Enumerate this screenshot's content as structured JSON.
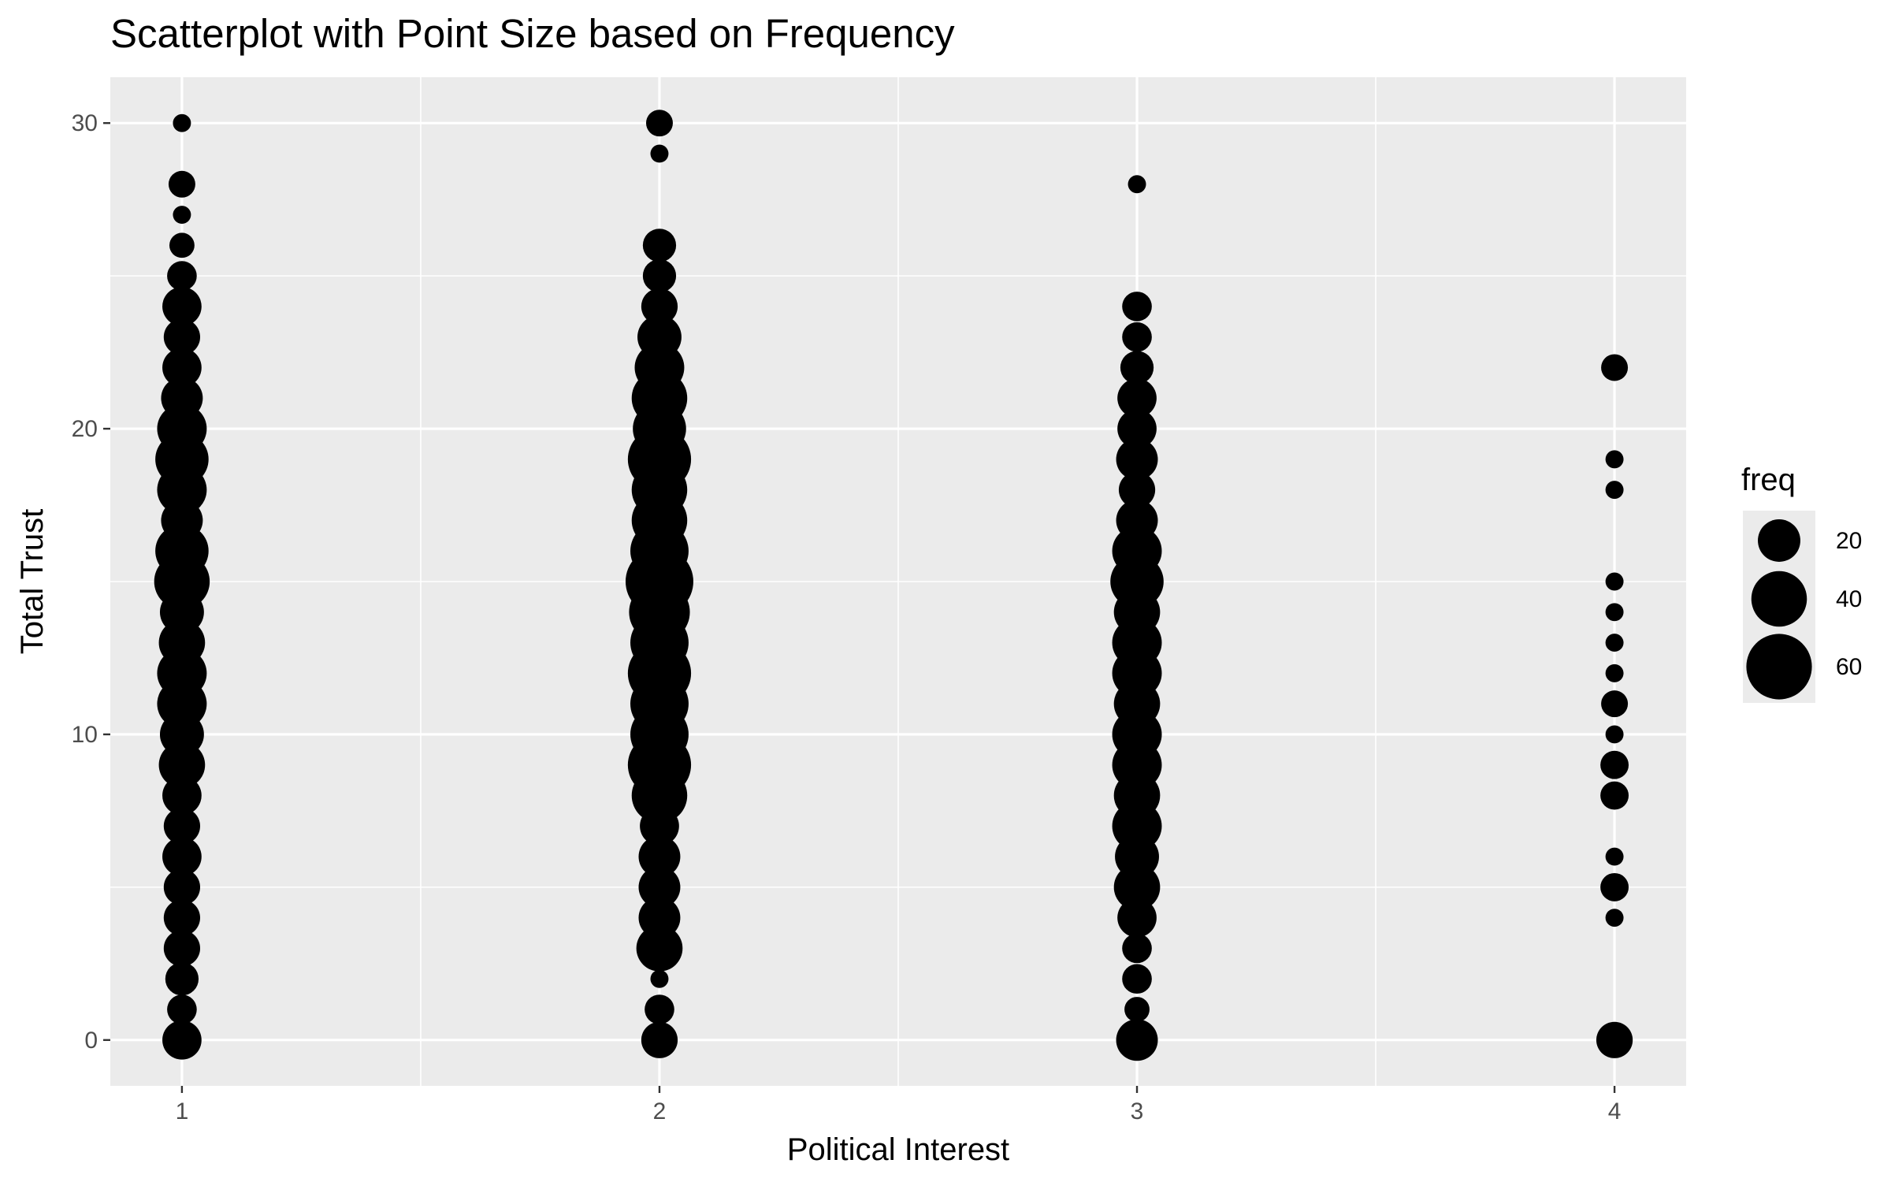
{
  "chart_data": {
    "type": "scatter",
    "title": "Scatterplot with Point Size based on Frequency",
    "xlabel": "Political Interest",
    "ylabel": "Total Trust",
    "xlim": [
      0.85,
      4.15
    ],
    "ylim": [
      -1.5,
      31.5
    ],
    "x_ticks": [
      1,
      2,
      3,
      4
    ],
    "y_ticks": [
      0,
      10,
      20,
      30
    ],
    "grid": true,
    "size_encoding": "freq",
    "legend": {
      "title": "freq",
      "position": "right",
      "entries": [
        {
          "label": "20",
          "value": 20
        },
        {
          "label": "40",
          "value": 40
        },
        {
          "label": "60",
          "value": 60
        }
      ]
    },
    "point_color": "#000000",
    "panel_background": "#ebebeb",
    "grid_color": "#ffffff",
    "series": [
      {
        "x": 1,
        "points": [
          {
            "y": 30,
            "freq": 1
          },
          {
            "y": 28,
            "freq": 5
          },
          {
            "y": 27,
            "freq": 1
          },
          {
            "y": 26,
            "freq": 4
          },
          {
            "y": 25,
            "freq": 7
          },
          {
            "y": 24,
            "freq": 16
          },
          {
            "y": 23,
            "freq": 13
          },
          {
            "y": 22,
            "freq": 16
          },
          {
            "y": 21,
            "freq": 19
          },
          {
            "y": 20,
            "freq": 30
          },
          {
            "y": 19,
            "freq": 36
          },
          {
            "y": 18,
            "freq": 30
          },
          {
            "y": 17,
            "freq": 19
          },
          {
            "y": 16,
            "freq": 36
          },
          {
            "y": 15,
            "freq": 40
          },
          {
            "y": 14,
            "freq": 22
          },
          {
            "y": 13,
            "freq": 25
          },
          {
            "y": 12,
            "freq": 30
          },
          {
            "y": 11,
            "freq": 30
          },
          {
            "y": 10,
            "freq": 22
          },
          {
            "y": 9,
            "freq": 25
          },
          {
            "y": 8,
            "freq": 16
          },
          {
            "y": 7,
            "freq": 13
          },
          {
            "y": 6,
            "freq": 16
          },
          {
            "y": 5,
            "freq": 13
          },
          {
            "y": 4,
            "freq": 13
          },
          {
            "y": 3,
            "freq": 13
          },
          {
            "y": 2,
            "freq": 10
          },
          {
            "y": 1,
            "freq": 7
          },
          {
            "y": 0,
            "freq": 16
          }
        ]
      },
      {
        "x": 2,
        "points": [
          {
            "y": 30,
            "freq": 5
          },
          {
            "y": 29,
            "freq": 1
          },
          {
            "y": 26,
            "freq": 10
          },
          {
            "y": 25,
            "freq": 10
          },
          {
            "y": 24,
            "freq": 13
          },
          {
            "y": 23,
            "freq": 22
          },
          {
            "y": 22,
            "freq": 30
          },
          {
            "y": 21,
            "freq": 40
          },
          {
            "y": 20,
            "freq": 36
          },
          {
            "y": 19,
            "freq": 55
          },
          {
            "y": 18,
            "freq": 40
          },
          {
            "y": 17,
            "freq": 40
          },
          {
            "y": 16,
            "freq": 45
          },
          {
            "y": 15,
            "freq": 65
          },
          {
            "y": 14,
            "freq": 50
          },
          {
            "y": 13,
            "freq": 45
          },
          {
            "y": 12,
            "freq": 55
          },
          {
            "y": 11,
            "freq": 45
          },
          {
            "y": 10,
            "freq": 45
          },
          {
            "y": 9,
            "freq": 55
          },
          {
            "y": 8,
            "freq": 40
          },
          {
            "y": 7,
            "freq": 16
          },
          {
            "y": 6,
            "freq": 19
          },
          {
            "y": 5,
            "freq": 19
          },
          {
            "y": 4,
            "freq": 19
          },
          {
            "y": 3,
            "freq": 25
          },
          {
            "y": 2,
            "freq": 1
          },
          {
            "y": 1,
            "freq": 7
          },
          {
            "y": 0,
            "freq": 13
          }
        ]
      },
      {
        "x": 3,
        "points": [
          {
            "y": 28,
            "freq": 1
          },
          {
            "y": 24,
            "freq": 7
          },
          {
            "y": 23,
            "freq": 7
          },
          {
            "y": 22,
            "freq": 10
          },
          {
            "y": 21,
            "freq": 16
          },
          {
            "y": 20,
            "freq": 16
          },
          {
            "y": 19,
            "freq": 19
          },
          {
            "y": 18,
            "freq": 13
          },
          {
            "y": 17,
            "freq": 19
          },
          {
            "y": 16,
            "freq": 30
          },
          {
            "y": 15,
            "freq": 36
          },
          {
            "y": 14,
            "freq": 25
          },
          {
            "y": 13,
            "freq": 30
          },
          {
            "y": 12,
            "freq": 30
          },
          {
            "y": 11,
            "freq": 25
          },
          {
            "y": 10,
            "freq": 30
          },
          {
            "y": 9,
            "freq": 30
          },
          {
            "y": 8,
            "freq": 25
          },
          {
            "y": 7,
            "freq": 30
          },
          {
            "y": 6,
            "freq": 22
          },
          {
            "y": 5,
            "freq": 25
          },
          {
            "y": 4,
            "freq": 16
          },
          {
            "y": 3,
            "freq": 7
          },
          {
            "y": 2,
            "freq": 7
          },
          {
            "y": 1,
            "freq": 4
          },
          {
            "y": 0,
            "freq": 19
          }
        ]
      },
      {
        "x": 4,
        "points": [
          {
            "y": 22,
            "freq": 5
          },
          {
            "y": 19,
            "freq": 1
          },
          {
            "y": 18,
            "freq": 1
          },
          {
            "y": 15,
            "freq": 1
          },
          {
            "y": 14,
            "freq": 1
          },
          {
            "y": 13,
            "freq": 1
          },
          {
            "y": 12,
            "freq": 1
          },
          {
            "y": 11,
            "freq": 5
          },
          {
            "y": 10,
            "freq": 1
          },
          {
            "y": 9,
            "freq": 6
          },
          {
            "y": 8,
            "freq": 6
          },
          {
            "y": 6,
            "freq": 1
          },
          {
            "y": 5,
            "freq": 6
          },
          {
            "y": 4,
            "freq": 1
          },
          {
            "y": 0,
            "freq": 13
          }
        ]
      }
    ]
  }
}
